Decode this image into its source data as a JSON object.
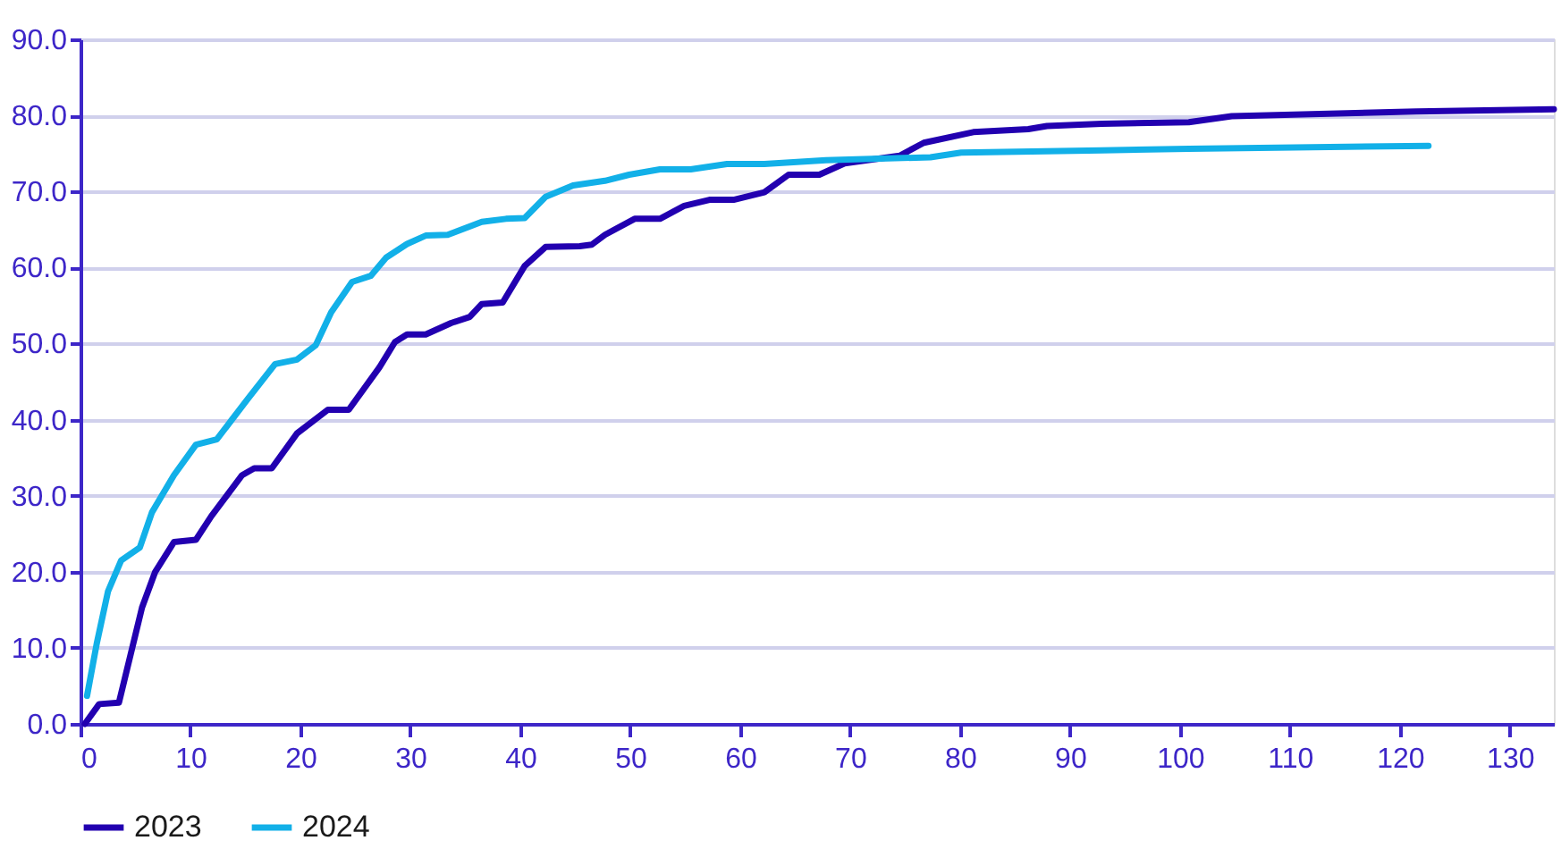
{
  "chart_data": {
    "type": "line",
    "xlim": [
      0,
      134
    ],
    "xticks": [
      0,
      10,
      20,
      30,
      40,
      50,
      60,
      70,
      80,
      90,
      100,
      110,
      120,
      130
    ],
    "ylim": [
      0,
      90
    ],
    "yticks": [
      {
        "value": 0,
        "label": "0.0"
      },
      {
        "value": 10,
        "label": "10.0"
      },
      {
        "value": 20,
        "label": "20.0"
      },
      {
        "value": 30,
        "label": "30.0"
      },
      {
        "value": 40,
        "label": "40.0"
      },
      {
        "value": 50,
        "label": "50.0"
      },
      {
        "value": 60,
        "label": "60.0"
      },
      {
        "value": 70,
        "label": "70.0"
      },
      {
        "value": 80,
        "label": "80.0"
      },
      {
        "value": 90,
        "label": "90.0"
      }
    ],
    "grid": "y",
    "legend": "bottom",
    "marker": "none",
    "line_style": "solid",
    "series": [
      {
        "name": "2023",
        "color": "#2200b0",
        "x": [
          0.4,
          1.7,
          3.5,
          5.6,
          6.8,
          8.5,
          10.5,
          11.9,
          14.7,
          15.8,
          17.4,
          19.7,
          22.5,
          24.4,
          27.2,
          28.6,
          29.7,
          31.4,
          33.7,
          35.4,
          36.5,
          38.4,
          40.4,
          42.3,
          45.4,
          46.5,
          47.7,
          50.4,
          52.7,
          54.9,
          57.2,
          59.4,
          62.2,
          64.4,
          67.2,
          69.5,
          74.5,
          76.7,
          81.2,
          86.2,
          87.9,
          92.9,
          100.8,
          104.7,
          121.5,
          134
        ],
        "values": [
          0,
          2.6,
          2.8,
          15.3,
          20,
          23.9,
          24.2,
          27.3,
          32.7,
          33.6,
          33.6,
          38.2,
          41.3,
          41.3,
          46.9,
          50.2,
          51.2,
          51.2,
          52.7,
          53.5,
          55.2,
          55.4,
          60.2,
          62.7,
          62.8,
          63,
          64.3,
          66.4,
          66.4,
          68.1,
          68.9,
          68.9,
          69.9,
          72.2,
          72.2,
          73.7,
          74.7,
          76.4,
          77.8,
          78.2,
          78.6,
          78.9,
          79.1,
          79.9,
          80.5,
          80.8
        ]
      },
      {
        "name": "2024",
        "color": "#12b0e8",
        "x": [
          0.6,
          1.5,
          2.5,
          3.7,
          5.4,
          6.5,
          8.5,
          10.5,
          12.4,
          15.2,
          17.7,
          19.7,
          21.4,
          22.8,
          24.7,
          26.4,
          27.8,
          29.7,
          31.4,
          33.4,
          36.5,
          38.7,
          40.4,
          42.3,
          44.8,
          47.7,
          49.9,
          52.7,
          55.5,
          58.8,
          62.2,
          67.8,
          77.3,
          80.1,
          92.9,
          100.8,
          122.6
        ],
        "values": [
          3.7,
          10.7,
          17.4,
          21.5,
          23.2,
          27.8,
          32.7,
          36.7,
          37.4,
          42.7,
          47.3,
          47.9,
          49.8,
          54.1,
          58.1,
          58.9,
          61.3,
          63.1,
          64.2,
          64.3,
          66,
          66.4,
          66.5,
          69.3,
          70.8,
          71.4,
          72.2,
          72.9,
          72.9,
          73.6,
          73.6,
          74.1,
          74.5,
          75.1,
          75.4,
          75.6,
          76.0
        ]
      }
    ]
  }
}
